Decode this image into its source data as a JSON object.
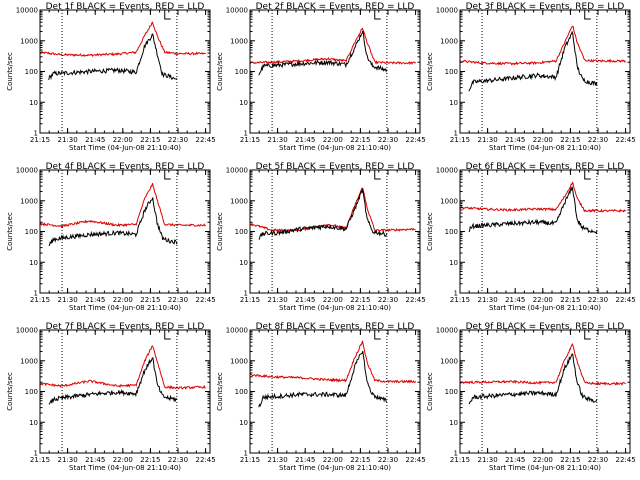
{
  "colors": {
    "events": "#000000",
    "lld": "#dd0000",
    "axes": "#000000"
  },
  "chart_data": [
    {
      "type": "line",
      "title": "Det 1f BLACK = Events, RED = LLD",
      "xlabel": "Start Time (04-Jun-08 21:10:40)",
      "ylabel": "Counts/sec",
      "scale_y": "log",
      "ylim": [
        1,
        10000
      ],
      "xlim": [
        21.25,
        22.79
      ],
      "xticks": [
        "21:15",
        "21:30",
        "21:45",
        "22:00",
        "22:15",
        "22:30",
        "22:45"
      ],
      "yticks": [
        "1",
        "10",
        "100",
        "1000",
        "10000"
      ],
      "marker_lines_x": [
        21.45,
        22.49
      ],
      "series": [
        {
          "name": "LLD",
          "color": "#dd0000",
          "x": [
            21.25,
            21.45,
            21.7,
            21.95,
            22.12,
            22.2,
            22.27,
            22.31,
            22.38,
            22.5,
            22.75
          ],
          "y": [
            420,
            350,
            340,
            370,
            420,
            1500,
            4100,
            1500,
            420,
            380,
            380
          ]
        },
        {
          "name": "Events",
          "color": "#000000",
          "x": [
            21.33,
            21.37,
            21.5,
            21.7,
            21.95,
            22.12,
            22.2,
            22.27,
            22.31,
            22.36,
            22.42,
            22.49
          ],
          "y": [
            60,
            85,
            90,
            100,
            110,
            95,
            700,
            1600,
            400,
            80,
            70,
            55
          ]
        }
      ]
    },
    {
      "type": "line",
      "title": "Det 2f BLACK = Events, RED = LLD",
      "xlabel": "Start Time (04-Jun-08 21:10:40)",
      "ylabel": "Counts/sec",
      "scale_y": "log",
      "ylim": [
        1,
        10000
      ],
      "xlim": [
        21.25,
        22.79
      ],
      "xticks": [
        "21:15",
        "21:30",
        "21:45",
        "22:00",
        "22:15",
        "22:30",
        "22:45"
      ],
      "yticks": [
        "1",
        "10",
        "100",
        "1000",
        "10000"
      ],
      "marker_lines_x": [
        21.45,
        22.49
      ],
      "series": [
        {
          "name": "LLD",
          "color": "#dd0000",
          "x": [
            21.25,
            21.45,
            21.7,
            21.95,
            22.12,
            22.2,
            22.27,
            22.31,
            22.38,
            22.5,
            22.75
          ],
          "y": [
            190,
            200,
            220,
            260,
            220,
            900,
            2600,
            900,
            200,
            190,
            190
          ]
        },
        {
          "name": "Events",
          "color": "#000000",
          "x": [
            21.33,
            21.37,
            21.5,
            21.7,
            21.95,
            22.12,
            22.2,
            22.27,
            22.31,
            22.36,
            22.42,
            22.49
          ],
          "y": [
            80,
            150,
            160,
            180,
            200,
            170,
            600,
            2100,
            300,
            150,
            130,
            110
          ]
        }
      ]
    },
    {
      "type": "line",
      "title": "Det 3f BLACK = Events, RED = LLD",
      "xlabel": "Start Time (04-Jun-08 21:10:40)",
      "ylabel": "Counts/sec",
      "scale_y": "log",
      "ylim": [
        1,
        10000
      ],
      "xlim": [
        21.25,
        22.79
      ],
      "xticks": [
        "21:15",
        "21:30",
        "21:45",
        "22:00",
        "22:15",
        "22:30",
        "22:45"
      ],
      "yticks": [
        "1",
        "10",
        "100",
        "1000",
        "10000"
      ],
      "marker_lines_x": [
        21.45,
        22.49
      ],
      "series": [
        {
          "name": "LLD",
          "color": "#dd0000",
          "x": [
            21.25,
            21.45,
            21.7,
            21.95,
            22.12,
            22.2,
            22.27,
            22.31,
            22.38,
            22.5,
            22.75
          ],
          "y": [
            220,
            190,
            180,
            190,
            220,
            900,
            3200,
            900,
            230,
            220,
            220
          ]
        },
        {
          "name": "Events",
          "color": "#000000",
          "x": [
            21.33,
            21.37,
            21.5,
            21.7,
            21.95,
            22.12,
            22.2,
            22.27,
            22.31,
            22.36,
            22.42,
            22.49
          ],
          "y": [
            25,
            45,
            50,
            60,
            75,
            65,
            600,
            1900,
            150,
            55,
            45,
            40
          ]
        }
      ]
    },
    {
      "type": "line",
      "title": "Det 4f BLACK = Events, RED = LLD",
      "xlabel": "Start Time (04-Jun-08 21:10:40)",
      "ylabel": "Counts/sec",
      "scale_y": "log",
      "ylim": [
        1,
        10000
      ],
      "xlim": [
        21.25,
        22.79
      ],
      "xticks": [
        "21:15",
        "21:30",
        "21:45",
        "22:00",
        "22:15",
        "22:30",
        "22:45"
      ],
      "yticks": [
        "1",
        "10",
        "100",
        "1000",
        "10000"
      ],
      "marker_lines_x": [
        21.45,
        22.49
      ],
      "series": [
        {
          "name": "LLD",
          "color": "#dd0000",
          "x": [
            21.25,
            21.45,
            21.7,
            21.95,
            22.12,
            22.2,
            22.27,
            22.31,
            22.38,
            22.5,
            22.75
          ],
          "y": [
            180,
            150,
            220,
            160,
            170,
            1200,
            3500,
            1100,
            170,
            160,
            160
          ]
        },
        {
          "name": "Events",
          "color": "#000000",
          "x": [
            21.33,
            21.37,
            21.5,
            21.7,
            21.95,
            22.12,
            22.2,
            22.27,
            22.31,
            22.36,
            22.42,
            22.49
          ],
          "y": [
            35,
            55,
            65,
            80,
            90,
            80,
            500,
            1300,
            200,
            60,
            50,
            45
          ]
        }
      ]
    },
    {
      "type": "line",
      "title": "Det 5f BLACK = Events, RED = LLD",
      "xlabel": "Start Time (04-Jun-08 21:10:40)",
      "ylabel": "Counts/sec",
      "scale_y": "log",
      "ylim": [
        1,
        10000
      ],
      "xlim": [
        21.25,
        22.79
      ],
      "xticks": [
        "21:15",
        "21:30",
        "21:45",
        "22:00",
        "22:15",
        "22:30",
        "22:45"
      ],
      "yticks": [
        "1",
        "10",
        "100",
        "1000",
        "10000"
      ],
      "marker_lines_x": [
        21.45,
        22.49
      ],
      "series": [
        {
          "name": "LLD",
          "color": "#dd0000",
          "x": [
            21.25,
            21.45,
            21.7,
            21.95,
            22.12,
            22.2,
            22.27,
            22.31,
            22.38,
            22.5,
            22.75
          ],
          "y": [
            180,
            110,
            110,
            170,
            130,
            700,
            2800,
            600,
            110,
            110,
            120
          ]
        },
        {
          "name": "Events",
          "color": "#000000",
          "x": [
            21.33,
            21.37,
            21.5,
            21.7,
            21.95,
            22.12,
            22.2,
            22.27,
            22.31,
            22.36,
            22.42,
            22.49
          ],
          "y": [
            60,
            85,
            90,
            120,
            150,
            120,
            550,
            2400,
            250,
            100,
            90,
            80
          ]
        }
      ]
    },
    {
      "type": "line",
      "title": "Det 6f BLACK = Events, RED = LLD",
      "xlabel": "Start Time (04-Jun-08 21:10:40)",
      "ylabel": "Counts/sec",
      "scale_y": "log",
      "ylim": [
        1,
        10000
      ],
      "xlim": [
        21.25,
        22.79
      ],
      "xticks": [
        "21:15",
        "21:30",
        "21:45",
        "22:00",
        "22:15",
        "22:30",
        "22:45"
      ],
      "yticks": [
        "1",
        "10",
        "100",
        "1000",
        "10000"
      ],
      "marker_lines_x": [
        21.45,
        22.49
      ],
      "series": [
        {
          "name": "LLD",
          "color": "#dd0000",
          "x": [
            21.25,
            21.45,
            21.7,
            21.95,
            22.12,
            22.2,
            22.27,
            22.31,
            22.38,
            22.5,
            22.75
          ],
          "y": [
            600,
            540,
            500,
            540,
            520,
            1400,
            4000,
            1200,
            480,
            470,
            470
          ]
        },
        {
          "name": "Events",
          "color": "#000000",
          "x": [
            21.33,
            21.37,
            21.5,
            21.7,
            21.95,
            22.12,
            22.2,
            22.27,
            22.31,
            22.36,
            22.42,
            22.49
          ],
          "y": [
            110,
            150,
            160,
            180,
            200,
            180,
            900,
            2800,
            250,
            130,
            110,
            100
          ]
        }
      ]
    },
    {
      "type": "line",
      "title": "Det 7f BLACK = Events, RED = LLD",
      "xlabel": "Start Time (04-Jun-08 21:10:40)",
      "ylabel": "Counts/sec",
      "scale_y": "log",
      "ylim": [
        1,
        10000
      ],
      "xlim": [
        21.25,
        22.79
      ],
      "xticks": [
        "21:15",
        "21:30",
        "21:45",
        "22:00",
        "22:15",
        "22:30",
        "22:45"
      ],
      "yticks": [
        "1",
        "10",
        "100",
        "1000",
        "10000"
      ],
      "marker_lines_x": [
        21.45,
        22.49
      ],
      "series": [
        {
          "name": "LLD",
          "color": "#dd0000",
          "x": [
            21.25,
            21.45,
            21.7,
            21.95,
            22.12,
            22.2,
            22.27,
            22.31,
            22.38,
            22.5,
            22.75
          ],
          "y": [
            180,
            150,
            220,
            150,
            160,
            1000,
            3200,
            1000,
            140,
            130,
            140
          ]
        },
        {
          "name": "Events",
          "color": "#000000",
          "x": [
            21.33,
            21.37,
            21.5,
            21.7,
            21.95,
            22.12,
            22.2,
            22.27,
            22.31,
            22.36,
            22.42,
            22.49
          ],
          "y": [
            35,
            55,
            65,
            80,
            95,
            85,
            500,
            1300,
            180,
            70,
            60,
            55
          ]
        }
      ]
    },
    {
      "type": "line",
      "title": "Det 8f BLACK = Events, RED = LLD",
      "xlabel": "Start Time (04-Jun-08 21:10:40)",
      "ylabel": "Counts/sec",
      "scale_y": "log",
      "ylim": [
        1,
        10000
      ],
      "xlim": [
        21.25,
        22.79
      ],
      "xticks": [
        "21:15",
        "21:30",
        "21:45",
        "22:00",
        "22:15",
        "22:30",
        "22:45"
      ],
      "yticks": [
        "1",
        "10",
        "100",
        "1000",
        "10000"
      ],
      "marker_lines_x": [
        21.45,
        22.49
      ],
      "series": [
        {
          "name": "LLD",
          "color": "#dd0000",
          "x": [
            21.25,
            21.45,
            21.7,
            21.95,
            22.12,
            22.2,
            22.27,
            22.31,
            22.38,
            22.5,
            22.75
          ],
          "y": [
            350,
            300,
            280,
            240,
            230,
            1300,
            4300,
            900,
            230,
            210,
            210
          ]
        },
        {
          "name": "Events",
          "color": "#000000",
          "x": [
            21.33,
            21.37,
            21.5,
            21.7,
            21.95,
            22.12,
            22.2,
            22.27,
            22.31,
            22.36,
            22.42,
            22.49
          ],
          "y": [
            30,
            65,
            70,
            80,
            80,
            75,
            650,
            2200,
            200,
            80,
            60,
            50
          ]
        }
      ]
    },
    {
      "type": "line",
      "title": "Det 9f BLACK = Events, RED = LLD",
      "xlabel": "Start Time (04-Jun-08 21:10:40)",
      "ylabel": "Counts/sec",
      "scale_y": "log",
      "ylim": [
        1,
        10000
      ],
      "xlim": [
        21.25,
        22.79
      ],
      "xticks": [
        "21:15",
        "21:30",
        "21:45",
        "22:00",
        "22:15",
        "22:30",
        "22:45"
      ],
      "yticks": [
        "1",
        "10",
        "100",
        "1000",
        "10000"
      ],
      "marker_lines_x": [
        21.45,
        22.49
      ],
      "series": [
        {
          "name": "LLD",
          "color": "#dd0000",
          "x": [
            21.25,
            21.45,
            21.7,
            21.95,
            22.12,
            22.2,
            22.27,
            22.31,
            22.38,
            22.5,
            22.75
          ],
          "y": [
            200,
            200,
            210,
            190,
            200,
            1100,
            3400,
            1000,
            190,
            180,
            180
          ]
        },
        {
          "name": "Events",
          "color": "#000000",
          "x": [
            21.33,
            21.37,
            21.5,
            21.7,
            21.95,
            22.12,
            22.2,
            22.27,
            22.31,
            22.36,
            22.42,
            22.49
          ],
          "y": [
            40,
            65,
            70,
            80,
            90,
            80,
            600,
            1700,
            200,
            70,
            55,
            50
          ]
        }
      ]
    }
  ]
}
